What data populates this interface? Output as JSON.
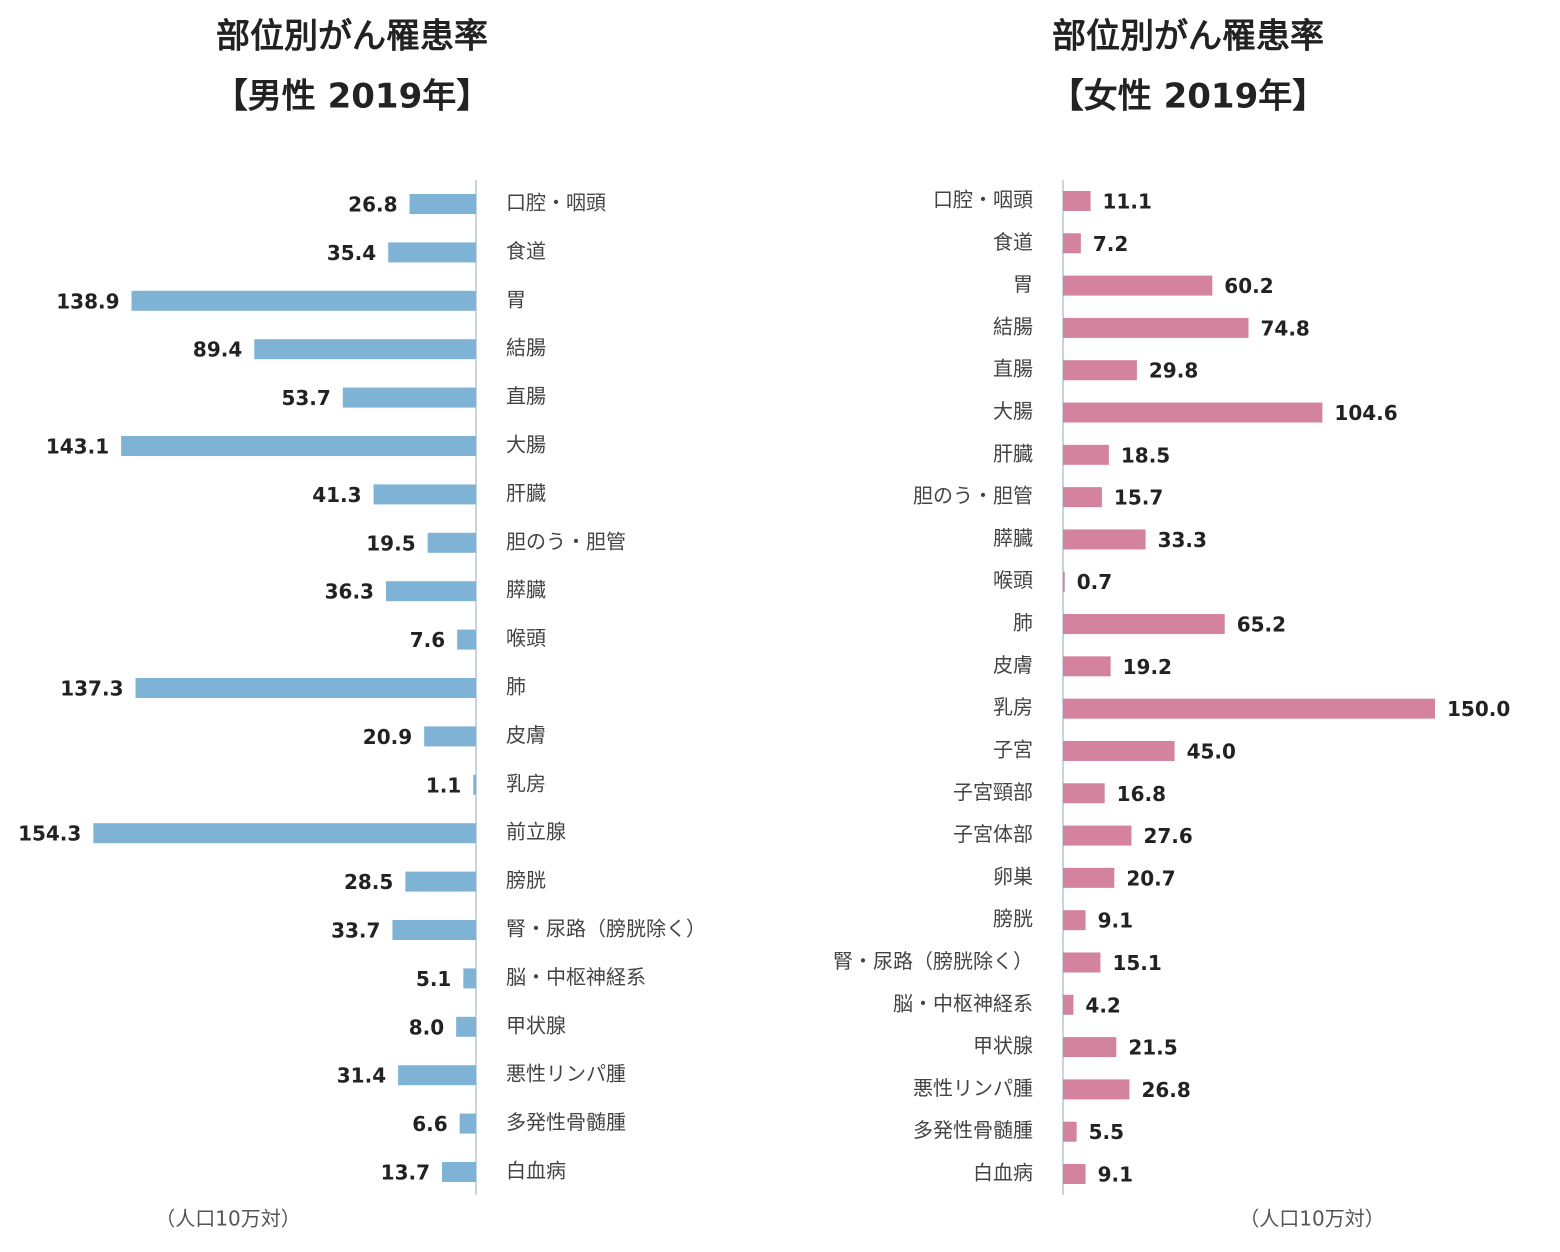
{
  "chart_data": [
    {
      "type": "bar",
      "title": "部位別がん罹患率",
      "subtitle": "【男性 2019年】",
      "annotation": "（人口10万対）",
      "color": "#7fb3d5",
      "categories": [
        "口腔・咽頭",
        "食道",
        "胃",
        "結腸",
        "直腸",
        "大腸",
        "肝臓",
        "胆のう・胆管",
        "膵臓",
        "喉頭",
        "肺",
        "皮膚",
        "乳房",
        "前立腺",
        "膀胱",
        "腎・尿路（膀胱除く）",
        "脳・中枢神経系",
        "甲状腺",
        "悪性リンパ腫",
        "多発性骨髄腫",
        "白血病"
      ],
      "values": [
        26.8,
        35.4,
        138.9,
        89.4,
        53.7,
        143.1,
        41.3,
        19.5,
        36.3,
        7.6,
        137.3,
        20.9,
        1.1,
        154.3,
        28.5,
        33.7,
        5.1,
        8.0,
        31.4,
        6.6,
        13.7
      ],
      "value_labels": [
        "26.8",
        "35.4",
        "138.9",
        "89.4",
        "53.7",
        "143.1",
        "41.3",
        "19.5",
        "36.3",
        "7.6",
        "137.3",
        "20.9",
        "1.1",
        "154.3",
        "28.5",
        "33.7",
        "5.1",
        "8.0",
        "31.4",
        "6.6",
        "13.7"
      ]
    },
    {
      "type": "bar",
      "title": "部位別がん罹患率",
      "subtitle": "【女性 2019年】",
      "annotation": "（人口10万対）",
      "color": "#d4839f",
      "categories": [
        "口腔・咽頭",
        "食道",
        "胃",
        "結腸",
        "直腸",
        "大腸",
        "肝臓",
        "胆のう・胆管",
        "膵臓",
        "喉頭",
        "肺",
        "皮膚",
        "乳房",
        "子宮",
        "子宮頸部",
        "子宮体部",
        "卵巣",
        "膀胱",
        "腎・尿路（膀胱除く）",
        "脳・中枢神経系",
        "甲状腺",
        "悪性リンパ腫",
        "多発性骨髄腫",
        "白血病"
      ],
      "values": [
        11.1,
        7.2,
        60.2,
        74.8,
        29.8,
        104.6,
        18.5,
        15.7,
        33.3,
        0.7,
        65.2,
        19.2,
        150.0,
        45.0,
        16.8,
        27.6,
        20.7,
        9.1,
        15.1,
        4.2,
        21.5,
        26.8,
        5.5,
        9.1
      ],
      "value_labels": [
        "11.1",
        "7.2",
        "60.2",
        "74.8",
        "29.8",
        "104.6",
        "18.5",
        "15.7",
        "33.3",
        "0.7",
        "65.2",
        "19.2",
        "150.0",
        "45.0",
        "16.8",
        "27.6",
        "20.7",
        "9.1",
        "15.1",
        "4.2",
        "21.5",
        "26.8",
        "5.5",
        "9.1"
      ]
    }
  ]
}
